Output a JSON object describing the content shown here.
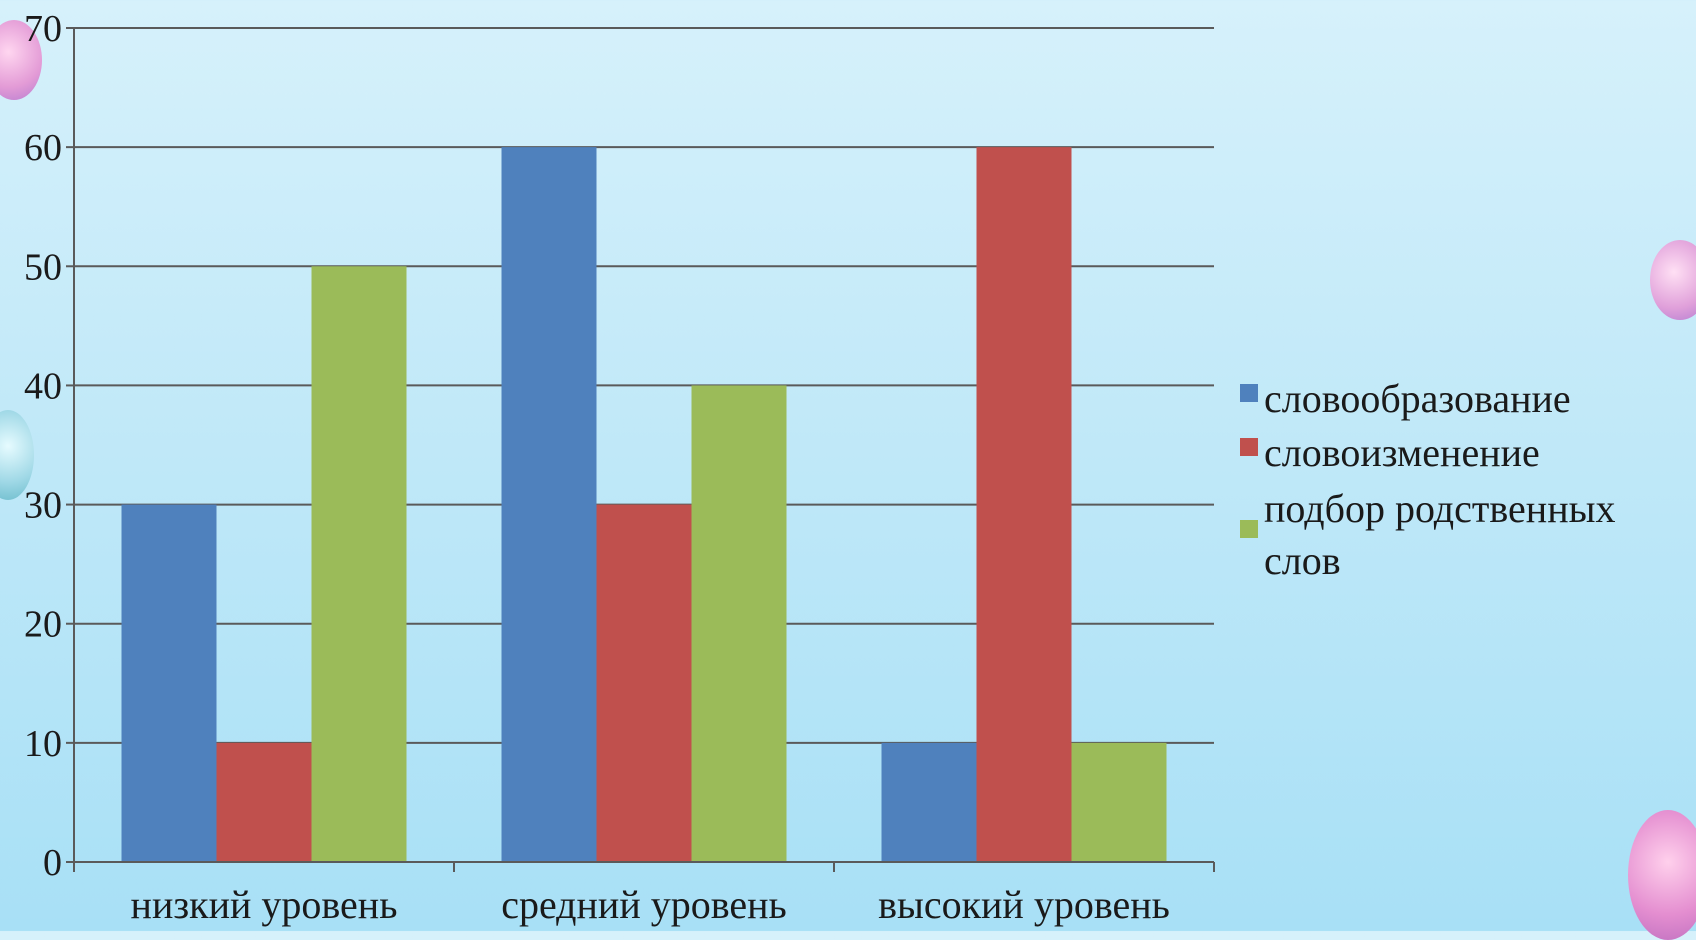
{
  "chart_data": {
    "type": "bar",
    "categories": [
      "низкий уровень",
      "средний уровень",
      "высокий уровень"
    ],
    "series": [
      {
        "name": "словообразование",
        "values": [
          30,
          60,
          10
        ],
        "color": "#4f81bd"
      },
      {
        "name": "словоизменение",
        "values": [
          10,
          30,
          60
        ],
        "color": "#c0504d"
      },
      {
        "name": "подбор родственных слов",
        "values": [
          50,
          40,
          10
        ],
        "color": "#9bbb59"
      }
    ],
    "ylim": [
      0,
      70
    ],
    "yticks": [
      0,
      10,
      20,
      30,
      40,
      50,
      60,
      70
    ],
    "grid": true,
    "legend_position": "right",
    "title": "",
    "xlabel": "",
    "ylabel": ""
  }
}
